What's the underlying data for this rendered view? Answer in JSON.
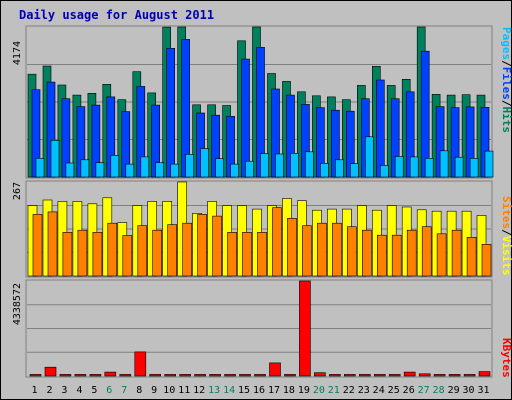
{
  "chart_data": [
    {
      "type": "bar",
      "title": "Daily usage for August 2011",
      "categories": [
        "1",
        "2",
        "3",
        "4",
        "5",
        "6",
        "7",
        "8",
        "9",
        "10",
        "11",
        "12",
        "13",
        "14",
        "15",
        "16",
        "17",
        "18",
        "19",
        "20",
        "21",
        "22",
        "23",
        "24",
        "25",
        "26",
        "27",
        "28",
        "29",
        "30",
        "31"
      ],
      "weekend_categories": [
        "6",
        "7",
        "13",
        "14",
        "20",
        "21",
        "27",
        "28"
      ],
      "ylim": [
        0,
        4174
      ],
      "y_max_label": "4174",
      "legend": [
        {
          "label": "Hits",
          "color": "#00805C"
        },
        {
          "label": "/",
          "color": "#000000"
        },
        {
          "label": "Files",
          "color": "#0040FF"
        },
        {
          "label": "/",
          "color": "#000000"
        },
        {
          "label": "Pages",
          "color": "#00C0FF"
        }
      ],
      "series": [
        {
          "name": "Hits",
          "color": "#00805C",
          "values": [
            2860,
            3090,
            2560,
            2280,
            2330,
            2580,
            2150,
            2930,
            2340,
            4170,
            4174,
            2010,
            2010,
            1990,
            3790,
            4174,
            2880,
            2660,
            2370,
            2260,
            2230,
            2150,
            2550,
            3080,
            2550,
            2720,
            4174,
            2300,
            2280,
            2290,
            2280
          ]
        },
        {
          "name": "Files",
          "color": "#0040FF",
          "values": [
            2430,
            2640,
            2180,
            1960,
            2000,
            2230,
            1820,
            2520,
            2000,
            3580,
            3830,
            1780,
            1720,
            1690,
            3280,
            3610,
            2450,
            2280,
            2020,
            1930,
            1860,
            1830,
            2180,
            2700,
            2180,
            2370,
            3500,
            1960,
            1930,
            1950,
            1940
          ]
        },
        {
          "name": "Pages",
          "color": "#00C0FF",
          "values": [
            520,
            1020,
            390,
            480,
            400,
            600,
            360,
            560,
            400,
            360,
            630,
            790,
            510,
            360,
            440,
            650,
            640,
            660,
            700,
            380,
            480,
            370,
            1120,
            320,
            570,
            560,
            520,
            730,
            550,
            520,
            720
          ]
        }
      ]
    },
    {
      "type": "bar",
      "ylim": [
        0,
        267
      ],
      "y_max_label": "267",
      "legend": [
        {
          "label": "Visits",
          "color": "#FFFF00"
        },
        {
          "label": "/",
          "color": "#000000"
        },
        {
          "label": "Sites",
          "color": "#FF8000"
        }
      ],
      "series": [
        {
          "name": "Visits",
          "color": "#FFFF00",
          "values": [
            200,
            216,
            212,
            212,
            205,
            222,
            152,
            200,
            212,
            212,
            267,
            178,
            212,
            200,
            200,
            190,
            200,
            220,
            214,
            187,
            190,
            190,
            200,
            187,
            200,
            196,
            188,
            184,
            184,
            184,
            172
          ]
        },
        {
          "name": "Sites",
          "color": "#FF8000",
          "values": [
            175,
            182,
            124,
            130,
            124,
            150,
            115,
            143,
            130,
            146,
            150,
            175,
            170,
            124,
            124,
            124,
            194,
            164,
            143,
            150,
            150,
            140,
            130,
            116,
            116,
            130,
            140,
            120,
            130,
            110,
            90
          ]
        }
      ]
    },
    {
      "type": "bar",
      "ylim": [
        0,
        4338572
      ],
      "y_max_label": "4338572",
      "legend": [
        {
          "label": "KBytes",
          "color": "#FF0000"
        }
      ],
      "series": [
        {
          "name": "KBytes",
          "color": "#FF0000",
          "values": [
            75000,
            400000,
            75000,
            75000,
            75000,
            180000,
            75000,
            1100000,
            75000,
            75000,
            75000,
            75000,
            75000,
            75000,
            75000,
            75000,
            600000,
            75000,
            4338572,
            150000,
            75000,
            75000,
            75000,
            75000,
            75000,
            180000,
            100000,
            75000,
            75000,
            75000,
            200000
          ]
        }
      ]
    }
  ]
}
